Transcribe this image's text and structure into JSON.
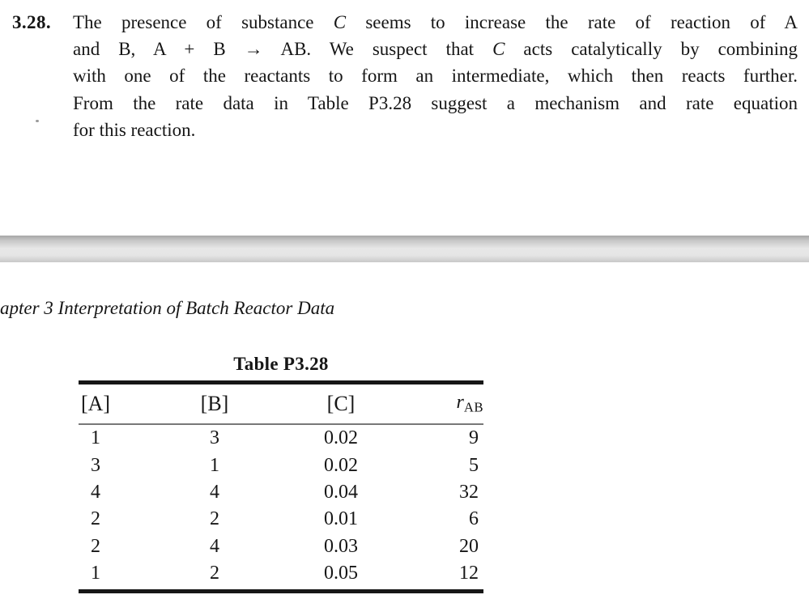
{
  "problem": {
    "number": "3.28.",
    "lines": [
      "The presence of substance *C* seems to increase the rate of reaction of A",
      "and B, A + B → AB. We suspect that *C* acts catalytically by combining",
      "with one of the reactants to form an intermediate, which then reacts further.",
      "From the rate data in Table P3.28 suggest a mechanism and rate equation",
      "for this reaction."
    ]
  },
  "running_header": "apter 3 Interpretation of Batch Reactor Data",
  "table": {
    "title": "Table P3.28",
    "columns": [
      "[A]",
      "[B]",
      "[C]",
      "*r*_{AB}"
    ],
    "rows": [
      [
        "1",
        "3",
        "0.02",
        "9"
      ],
      [
        "3",
        "1",
        "0.02",
        "5"
      ],
      [
        "4",
        "4",
        "0.04",
        "32"
      ],
      [
        "2",
        "2",
        "0.01",
        "6"
      ],
      [
        "2",
        "4",
        "0.03",
        "20"
      ],
      [
        "1",
        "2",
        "0.05",
        "12"
      ]
    ]
  },
  "colors": {
    "page_bg": "#ffffff",
    "ink": "#161616",
    "divider_top": "#a6a6a6",
    "divider_mid": "#e7e7e7",
    "divider_bottom": "#c8c8c8",
    "rule_thick": "#171717",
    "rule_thin": "#787878"
  }
}
